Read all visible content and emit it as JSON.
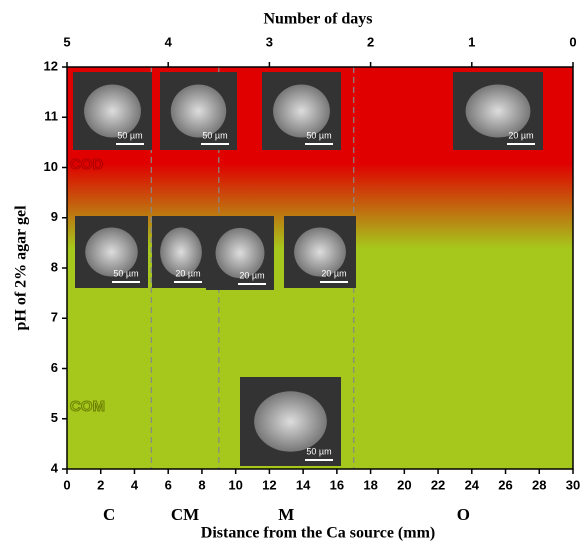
{
  "chart_data": {
    "type": "phase-map",
    "title": "Number of days",
    "x_label": "Distance from the Ca source (mm)",
    "y_label": "pH of 2% agar gel",
    "xlim": [
      0,
      30
    ],
    "xticks": [
      0,
      2,
      4,
      6,
      8,
      10,
      12,
      14,
      16,
      18,
      20,
      22,
      24,
      26,
      28,
      30
    ],
    "x2lim": [
      5,
      0
    ],
    "x2ticks": [
      5,
      4,
      3,
      2,
      1,
      0
    ],
    "ylim": [
      4,
      12
    ],
    "yticks": [
      4,
      5,
      6,
      7,
      8,
      9,
      10,
      11,
      12
    ],
    "regions": [
      {
        "label": "C",
        "from": 0,
        "to": 5
      },
      {
        "label": "CM",
        "from": 5,
        "to": 9
      },
      {
        "label": "M",
        "from": 9,
        "to": 17
      },
      {
        "label": "O",
        "from": 17,
        "to": 30
      }
    ],
    "phases": [
      {
        "label": "COD",
        "color": "#b00000"
      },
      {
        "label": "COM",
        "color": "#6a8000"
      }
    ],
    "colors": {
      "top": "#e00000",
      "bottom": "#a6c71c"
    },
    "images": [
      {
        "scale": "50 µm"
      },
      {
        "scale": "50 µm"
      },
      {
        "scale": "50 µm"
      },
      {
        "scale": "20 µm"
      },
      {
        "scale": "50 µm"
      },
      {
        "scale": "20 µm"
      },
      {
        "scale": "20 µm"
      },
      {
        "scale": "20 µm"
      },
      {
        "scale": "50 µm"
      }
    ]
  }
}
